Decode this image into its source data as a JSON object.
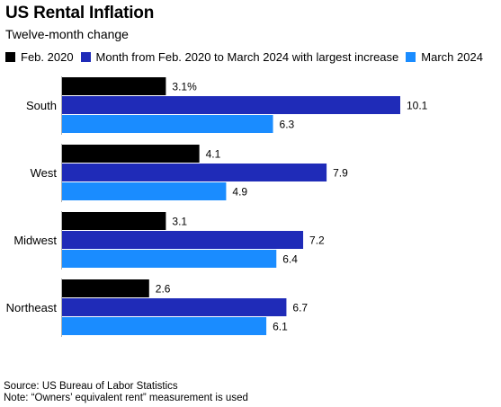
{
  "title": "US Rental Inflation",
  "subtitle": "Twelve-month change",
  "source": "Source: US Bureau of Labor Statistics",
  "note": "Note: “Owners’ equivalent rent” measurement is used",
  "chart_data": {
    "type": "bar",
    "orientation": "horizontal",
    "title": "US Rental Inflation",
    "subtitle": "Twelve-month change",
    "categories": [
      "South",
      "West",
      "Midwest",
      "Northeast"
    ],
    "series": [
      {
        "name": "Feb. 2020",
        "color": "#000000",
        "values": [
          3.1,
          4.1,
          3.1,
          2.6
        ],
        "labels": [
          "3.1%",
          "4.1",
          "3.1",
          "2.6"
        ]
      },
      {
        "name": "Month from Feb. 2020 to March 2024 with largest increase",
        "color": "#1f2bb8",
        "values": [
          10.1,
          7.9,
          7.2,
          6.7
        ],
        "labels": [
          "10.1",
          "7.9",
          "7.2",
          "6.7"
        ]
      },
      {
        "name": "March 2024",
        "color": "#1a8cff",
        "values": [
          6.3,
          4.9,
          6.4,
          6.1
        ],
        "labels": [
          "6.3",
          "4.9",
          "6.4",
          "6.1"
        ]
      }
    ],
    "xlim": [
      0,
      10.1
    ],
    "grid": false,
    "legend_position": "top-left"
  }
}
